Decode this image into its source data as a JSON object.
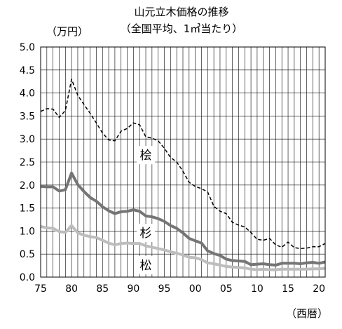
{
  "chart_data": {
    "type": "line",
    "title": "山元立木価格の推移",
    "subtitle": "（全国平均、1㎥当たり）",
    "ylabel": "（万円）",
    "xlabel": "（西暦）",
    "ylim": [
      0.0,
      5.0
    ],
    "yticks": [
      "0.0",
      "0.5",
      "1.0",
      "1.5",
      "2.0",
      "2.5",
      "3.0",
      "3.5",
      "4.0",
      "4.5",
      "5.0"
    ],
    "xlim": [
      75,
      121
    ],
    "xticks": [
      "75",
      "80",
      "85",
      "90",
      "95",
      "00",
      "05",
      "10",
      "15",
      "20"
    ],
    "grid": true,
    "x": [
      75,
      76,
      77,
      78,
      79,
      80,
      81,
      82,
      83,
      84,
      85,
      86,
      87,
      88,
      89,
      90,
      91,
      92,
      93,
      94,
      95,
      96,
      97,
      98,
      99,
      100,
      101,
      102,
      103,
      104,
      105,
      106,
      107,
      108,
      109,
      110,
      111,
      112,
      113,
      114,
      115,
      116,
      117,
      118,
      119,
      120,
      121
    ],
    "series": [
      {
        "name": "桧",
        "color": "#000000",
        "dash": "dashed",
        "values": [
          3.6,
          3.66,
          3.65,
          3.47,
          3.62,
          4.3,
          3.95,
          3.75,
          3.56,
          3.35,
          3.13,
          2.98,
          2.96,
          3.17,
          3.23,
          3.35,
          3.31,
          3.05,
          3.02,
          2.96,
          2.8,
          2.6,
          2.5,
          2.3,
          2.06,
          1.97,
          1.92,
          1.85,
          1.54,
          1.43,
          1.38,
          1.19,
          1.13,
          1.09,
          0.97,
          0.82,
          0.8,
          0.84,
          0.7,
          0.65,
          0.76,
          0.64,
          0.62,
          0.63,
          0.66,
          0.66,
          0.73
        ]
      },
      {
        "name": "杉",
        "color": "#757575",
        "dash": "solid",
        "values": [
          1.97,
          1.96,
          1.96,
          1.87,
          1.9,
          2.26,
          2.01,
          1.86,
          1.73,
          1.65,
          1.53,
          1.44,
          1.38,
          1.42,
          1.43,
          1.46,
          1.43,
          1.33,
          1.31,
          1.27,
          1.21,
          1.12,
          1.06,
          0.96,
          0.84,
          0.79,
          0.74,
          0.57,
          0.51,
          0.47,
          0.39,
          0.36,
          0.35,
          0.34,
          0.27,
          0.28,
          0.29,
          0.27,
          0.26,
          0.3,
          0.3,
          0.3,
          0.29,
          0.31,
          0.32,
          0.3,
          0.33
        ]
      },
      {
        "name": "松",
        "color": "#bdbdbd",
        "dash": "solid",
        "values": [
          1.1,
          1.07,
          1.06,
          0.99,
          0.97,
          1.12,
          0.96,
          0.91,
          0.88,
          0.86,
          0.8,
          0.74,
          0.7,
          0.73,
          0.74,
          0.73,
          0.73,
          0.68,
          0.65,
          0.62,
          0.59,
          0.55,
          0.52,
          0.48,
          0.43,
          0.42,
          0.38,
          0.31,
          0.29,
          0.26,
          0.23,
          0.22,
          0.21,
          0.2,
          0.17,
          0.16,
          0.17,
          0.16,
          0.16,
          0.17,
          0.17,
          0.17,
          0.17,
          0.17,
          0.18,
          0.18,
          0.19
        ]
      }
    ]
  }
}
